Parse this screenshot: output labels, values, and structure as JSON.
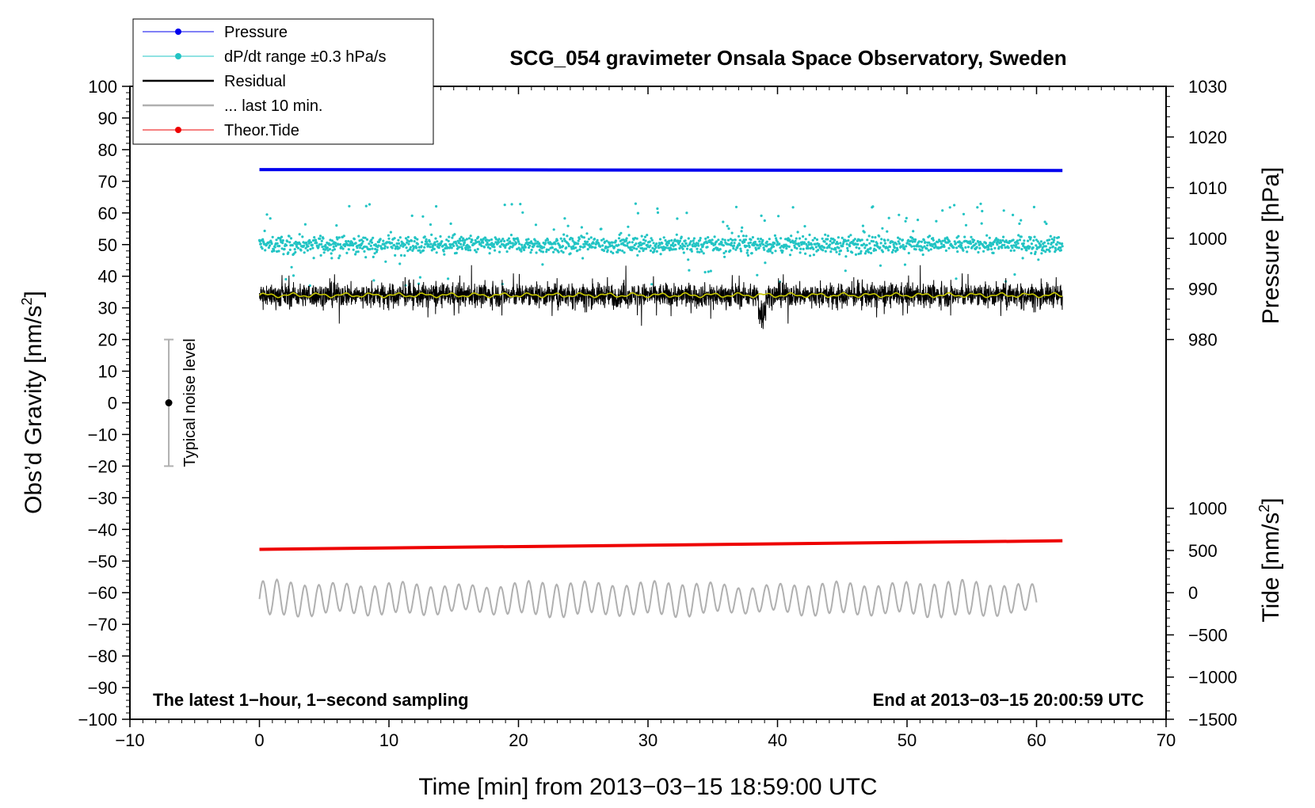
{
  "chart_data": {
    "type": "line",
    "title": "SCG_054 gravimeter Onsala Space Observatory, Sweden",
    "xlabel": "Time [min] from 2013−03−15 18:59:00 UTC",
    "ylabel_left": "Obs’d Gravity [nm/s",
    "ylabel_left_sup": "2",
    "ylabel_left_close": "]",
    "ylabel_right_pressure": "Pressure [hPa]",
    "ylabel_right_tide": "Tide [nm/s",
    "ylabel_right_tide_sup": "2",
    "ylabel_right_tide_close": "]",
    "xlim": [
      -10,
      70
    ],
    "ylim": [
      -100,
      100
    ],
    "pressure_axis_range": [
      980,
      1030
    ],
    "tide_axis_range": [
      -1500,
      1000
    ],
    "x_ticks": [
      "−10",
      "0",
      "10",
      "20",
      "30",
      "40",
      "50",
      "60",
      "70"
    ],
    "y_ticks": [
      "100",
      "90",
      "80",
      "70",
      "60",
      "50",
      "40",
      "30",
      "20",
      "10",
      "0",
      "−10",
      "−20",
      "−30",
      "−40",
      "−50",
      "−60",
      "−70",
      "−80",
      "−90",
      "−100"
    ],
    "pressure_ticks": [
      "1030",
      "1020",
      "1010",
      "1000",
      "990",
      "980"
    ],
    "tide_ticks": [
      "1000",
      "500",
      "0",
      "−500",
      "−1000",
      "−1500"
    ],
    "annotation_left": "The latest 1−hour, 1−second sampling",
    "annotation_right": "End at 2013−03−15 20:00:59 UTC",
    "noise_bar": {
      "label": "Typical noise level",
      "x": -7,
      "center": 0,
      "low": -20,
      "high": 20
    },
    "legend": {
      "placement": "top-left",
      "entries": [
        {
          "label": "Pressure",
          "color": "#0000ee",
          "marker": true
        },
        {
          "label": "dP/dt range ±0.3 hPa/s",
          "color": "#22c4c4",
          "marker": true
        },
        {
          "label": "Residual",
          "color": "#000000",
          "marker": false
        },
        {
          "label": "... last 10 min.",
          "color": "#b0b0b0",
          "marker": false
        },
        {
          "label": "Theor.Tide",
          "color": "#ee0000",
          "marker": true
        }
      ]
    },
    "series": [
      {
        "name": "Pressure",
        "color": "#0000ee",
        "x": [
          0,
          62
        ],
        "y": [
          73.7,
          73.4
        ],
        "kind": "line"
      },
      {
        "name": "dP/dt range ±0.3 hPa/s",
        "color": "#22c4c4",
        "x_range": [
          0,
          62
        ],
        "center": 50,
        "spread": 3,
        "kind": "scatter"
      },
      {
        "name": "Residual",
        "color": "#000000",
        "x_range": [
          0,
          62
        ],
        "center": 34,
        "spread": 4,
        "kind": "noise"
      },
      {
        "name": "Residual smoothed",
        "color": "#c8c800",
        "x_range": [
          0,
          62
        ],
        "center": 34,
        "kind": "line"
      },
      {
        "name": "... last 10 min.",
        "color": "#b0b0b0",
        "x_range": [
          0,
          60
        ],
        "center": -62,
        "amplitude": 5,
        "kind": "wave"
      },
      {
        "name": "Theor.Tide",
        "color": "#ee0000",
        "x": [
          0,
          62
        ],
        "y": [
          -46.3,
          -43.6
        ],
        "kind": "line"
      }
    ]
  }
}
